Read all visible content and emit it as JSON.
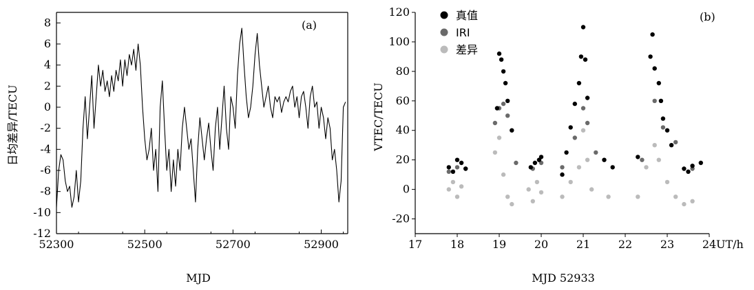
{
  "chart_data": [
    {
      "type": "line",
      "panel_label": "(a)",
      "xlabel": "MJD",
      "ylabel": "日均差异/TECU",
      "xlim": [
        52300,
        52960
      ],
      "ylim": [
        -12,
        9
      ],
      "xticks": [
        52300,
        52500,
        52700,
        52900
      ],
      "yticks": [
        -12,
        -10,
        -8,
        -6,
        -4,
        -2,
        0,
        2,
        4,
        6,
        8
      ],
      "series": [
        {
          "color": "#000000",
          "x": [
            52300,
            52305,
            52310,
            52315,
            52320,
            52325,
            52330,
            52335,
            52340,
            52345,
            52350,
            52355,
            52360,
            52365,
            52370,
            52375,
            52380,
            52385,
            52390,
            52395,
            52400,
            52405,
            52410,
            52415,
            52420,
            52425,
            52430,
            52435,
            52440,
            52445,
            52450,
            52455,
            52460,
            52465,
            52470,
            52475,
            52480,
            52485,
            52490,
            52495,
            52500,
            52505,
            52510,
            52515,
            52520,
            52525,
            52530,
            52535,
            52540,
            52545,
            52550,
            52555,
            52560,
            52565,
            52570,
            52575,
            52580,
            52585,
            52590,
            52595,
            52600,
            52605,
            52610,
            52615,
            52620,
            52625,
            52630,
            52635,
            52640,
            52645,
            52650,
            52655,
            52660,
            52665,
            52670,
            52675,
            52680,
            52685,
            52690,
            52695,
            52700,
            52705,
            52710,
            52715,
            52720,
            52725,
            52730,
            52735,
            52740,
            52745,
            52750,
            52755,
            52760,
            52765,
            52770,
            52775,
            52780,
            52785,
            52790,
            52795,
            52800,
            52805,
            52810,
            52815,
            52820,
            52825,
            52830,
            52835,
            52840,
            52845,
            52850,
            52855,
            52860,
            52865,
            52870,
            52875,
            52880,
            52885,
            52890,
            52895,
            52900,
            52905,
            52910,
            52915,
            52920,
            52925,
            52930,
            52935,
            52940,
            52945,
            52950,
            52955
          ],
          "y": [
            -9.5,
            -6,
            -4.5,
            -5,
            -7,
            -8,
            -7.5,
            -9.5,
            -8.5,
            -6,
            -9,
            -7,
            -2,
            1,
            -3,
            0,
            3,
            -2,
            1,
            4,
            2,
            3.5,
            1.5,
            2.5,
            1,
            3,
            1.5,
            3.5,
            2.5,
            4.5,
            2,
            4.5,
            3,
            5,
            4,
            5.5,
            3.5,
            6,
            4,
            0,
            -3,
            -5,
            -4,
            -2,
            -6,
            -4,
            -8,
            0,
            2.5,
            -2,
            -6,
            -4,
            -8,
            -5,
            -7.5,
            -4,
            -6,
            -2,
            0,
            -2,
            -4,
            -3,
            -6,
            -9,
            -4,
            -1,
            -3,
            -5,
            -3,
            -1.5,
            -4,
            -6,
            -2,
            0,
            -4,
            -1,
            2,
            -2,
            -4,
            1,
            0,
            -2,
            3,
            6,
            7.5,
            4,
            1,
            -1,
            0,
            2,
            5,
            7,
            4,
            2,
            0,
            1,
            2,
            0,
            -1,
            1,
            0.5,
            1,
            -0.5,
            0.5,
            1,
            0.5,
            1.5,
            2,
            0,
            1,
            -1,
            1,
            1.5,
            0,
            -2,
            1,
            2,
            0,
            0.5,
            -2,
            0,
            -1,
            -3,
            -1,
            -2,
            -5,
            -4,
            -6,
            -9,
            -7,
            0,
            0.5
          ]
        }
      ]
    },
    {
      "type": "scatter",
      "panel_label": "(b)",
      "xlabel": "MJD 52933",
      "x_unit": "UT/h",
      "ylabel": "VTEC/TECU",
      "xlim": [
        17,
        24
      ],
      "ylim": [
        -30,
        120
      ],
      "xticks": [
        17,
        18,
        19,
        20,
        21,
        22,
        23,
        24
      ],
      "yticks": [
        -20,
        0,
        20,
        40,
        60,
        80,
        100,
        120
      ],
      "legend": {
        "position": "top-left"
      },
      "series": [
        {
          "name": "真值",
          "color": "#000000",
          "x": [
            17.8,
            17.9,
            18.0,
            18.1,
            18.2,
            18.95,
            19.0,
            19.05,
            19.1,
            19.15,
            19.2,
            19.3,
            19.75,
            19.85,
            19.95,
            20.0,
            20.5,
            20.6,
            20.7,
            20.8,
            20.9,
            20.95,
            21.0,
            21.05,
            21.1,
            21.5,
            21.7,
            22.3,
            22.6,
            22.65,
            22.7,
            22.8,
            22.85,
            22.9,
            23.0,
            23.1,
            23.4,
            23.5,
            23.6,
            23.8
          ],
          "y": [
            15,
            12,
            20,
            18,
            14,
            55,
            92,
            88,
            80,
            72,
            60,
            40,
            15,
            18,
            20,
            22,
            10,
            25,
            42,
            58,
            72,
            90,
            110,
            88,
            62,
            20,
            15,
            22,
            90,
            105,
            82,
            72,
            60,
            48,
            40,
            30,
            14,
            12,
            16,
            18
          ]
        },
        {
          "name": "IRI",
          "color": "#6a6a6a",
          "x": [
            17.8,
            18.0,
            18.2,
            18.9,
            19.0,
            19.1,
            19.2,
            19.4,
            19.8,
            20.0,
            20.5,
            20.8,
            21.0,
            21.1,
            21.3,
            22.4,
            22.7,
            22.9,
            23.2,
            23.6
          ],
          "y": [
            12,
            15,
            14,
            45,
            55,
            58,
            50,
            18,
            14,
            18,
            15,
            35,
            55,
            45,
            25,
            20,
            60,
            42,
            32,
            14
          ]
        },
        {
          "name": "差异",
          "color": "#bbbbbb",
          "x": [
            17.8,
            17.9,
            18.0,
            18.1,
            18.9,
            19.0,
            19.1,
            19.2,
            19.3,
            19.7,
            19.8,
            19.9,
            20.0,
            20.5,
            20.7,
            20.9,
            21.0,
            21.1,
            21.2,
            21.6,
            22.3,
            22.5,
            22.7,
            22.8,
            23.0,
            23.2,
            23.4,
            23.6
          ],
          "y": [
            0,
            5,
            -5,
            2,
            25,
            35,
            10,
            -5,
            -10,
            0,
            -8,
            5,
            -2,
            -5,
            5,
            15,
            40,
            20,
            0,
            -5,
            -5,
            15,
            30,
            20,
            5,
            -5,
            -10,
            -8
          ]
        }
      ]
    }
  ]
}
